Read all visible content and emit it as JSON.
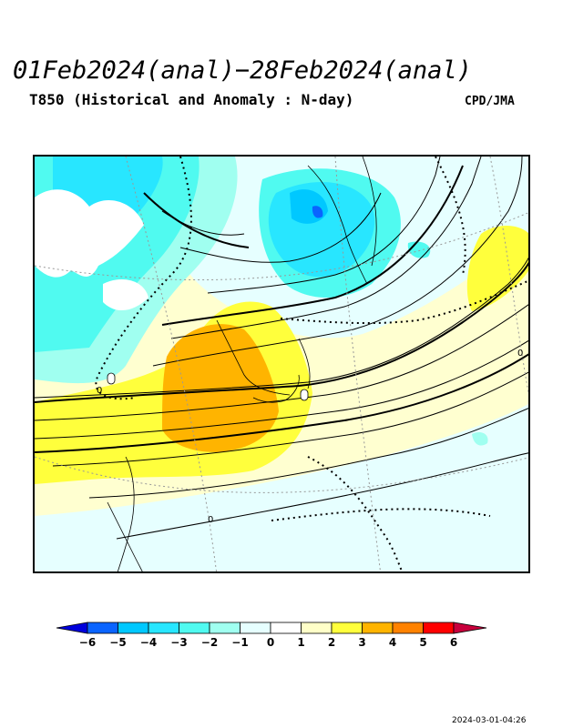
{
  "header": {
    "title": "01Feb2024(anal)−28Feb2024(anal)",
    "subtitle": "T850 (Historical and Anomaly : N-day)",
    "credit": "CPD/JMA"
  },
  "map": {
    "contour_labels": [
      "0",
      "0",
      "0",
      "0",
      "0"
    ]
  },
  "legend": {
    "ticks": [
      "−6",
      "−5",
      "−4",
      "−3",
      "−2",
      "−1",
      "0",
      "1",
      "2",
      "3",
      "4",
      "5",
      "6"
    ],
    "colors": [
      "#0000dc",
      "#0a64ff",
      "#00c8ff",
      "#28e6ff",
      "#50faf0",
      "#a0fff0",
      "#e6ffff",
      "#ffffff",
      "#ffffc8",
      "#ffff3c",
      "#ffb400",
      "#ff8200",
      "#ff0000",
      "#c8003c"
    ]
  },
  "footer": {
    "timestamp": "2024-03-01-04:26"
  }
}
